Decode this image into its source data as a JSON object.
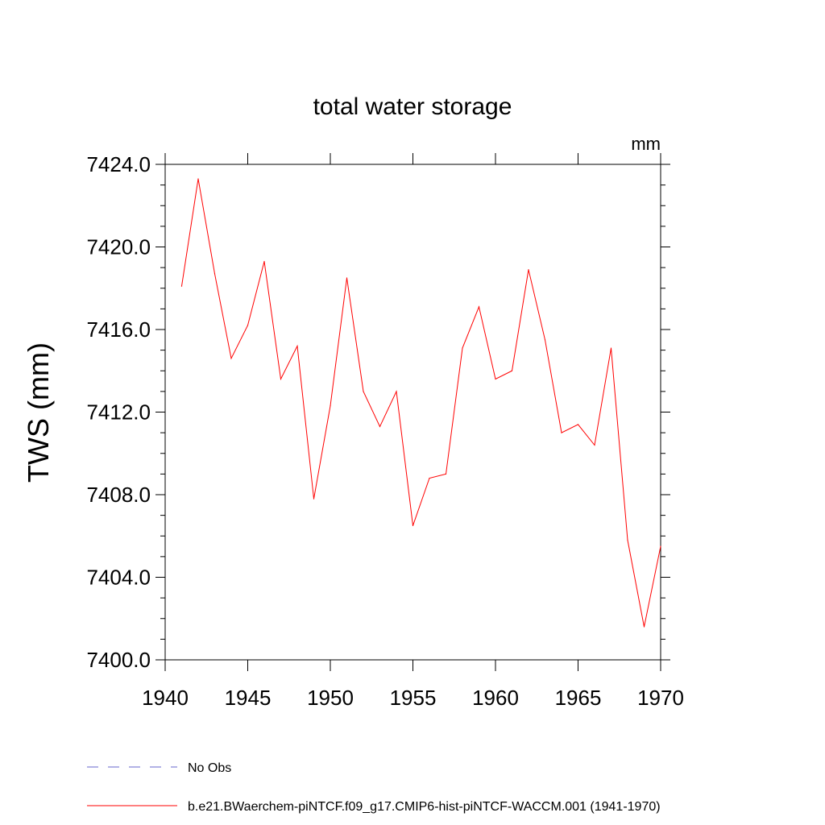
{
  "chart_data": {
    "type": "line",
    "title": "total water storage",
    "unit_label": "mm",
    "ylabel": "TWS  (mm)",
    "xlabel": "",
    "xlim": [
      1940,
      1970
    ],
    "ylim": [
      7400.0,
      7424.0
    ],
    "x_ticks": [
      1940,
      1945,
      1950,
      1955,
      1960,
      1965,
      1970
    ],
    "x_tick_labels": [
      "1940",
      "1945",
      "1950",
      "1955",
      "1960",
      "1965",
      "1970"
    ],
    "y_ticks": [
      7400.0,
      7404.0,
      7408.0,
      7412.0,
      7416.0,
      7420.0,
      7424.0
    ],
    "y_tick_labels": [
      "7400.0",
      "7404.0",
      "7408.0",
      "7412.0",
      "7416.0",
      "7420.0",
      "7424.0"
    ],
    "y_minor_step": 1.0,
    "x_minor_step": 1,
    "grid": false,
    "legend_position": "bottom",
    "series": [
      {
        "name": "b.e21.BWaerchem-piNTCF.f09_g17.CMIP6-hist-piNTCF-WACCM.001 (1941-1970)",
        "color": "#ff0000",
        "dash": "solid",
        "x": [
          1941,
          1942,
          1943,
          1944,
          1945,
          1946,
          1947,
          1948,
          1949,
          1950,
          1951,
          1952,
          1953,
          1954,
          1955,
          1956,
          1957,
          1958,
          1959,
          1960,
          1961,
          1962,
          1963,
          1964,
          1965,
          1966,
          1967,
          1968,
          1969,
          1970
        ],
        "values": [
          7418.1,
          7423.3,
          7418.7,
          7414.6,
          7416.2,
          7419.3,
          7413.6,
          7415.2,
          7407.8,
          7412.3,
          7418.5,
          7413.0,
          7411.3,
          7413.0,
          7406.5,
          7408.8,
          7409.0,
          7415.1,
          7417.1,
          7413.6,
          7414.0,
          7418.9,
          7415.5,
          7411.0,
          7411.4,
          7410.4,
          7415.1,
          7405.8,
          7401.6,
          7405.5
        ]
      }
    ],
    "legend": [
      {
        "label": "No Obs",
        "color": "#6666cc",
        "dash": "dashed"
      },
      {
        "label": "b.e21.BWaerchem-piNTCF.f09_g17.CMIP6-hist-piNTCF-WACCM.001 (1941-1970)",
        "color": "#ff0000",
        "dash": "solid"
      }
    ]
  }
}
